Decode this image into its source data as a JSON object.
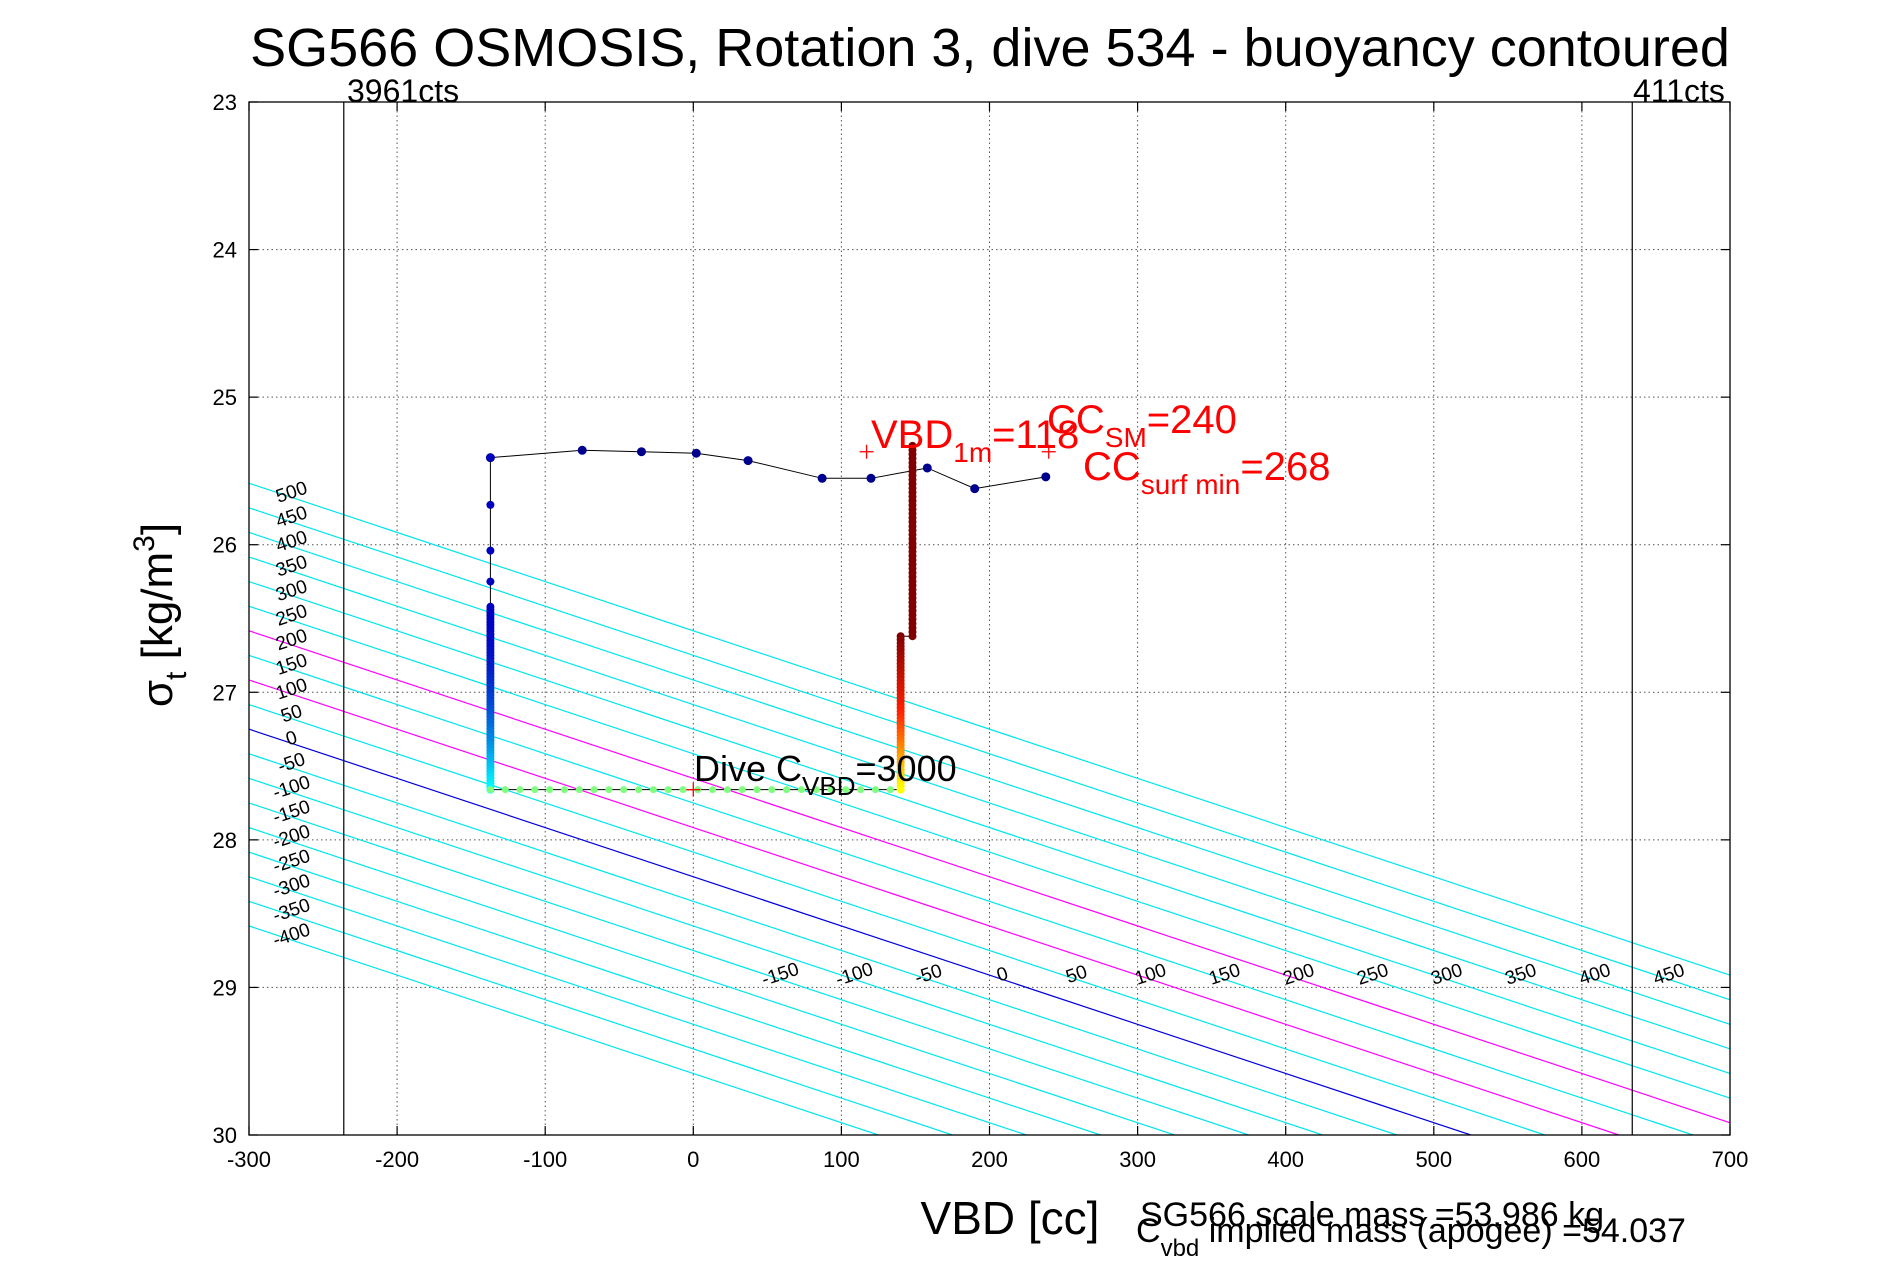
{
  "chart_data": {
    "type": "scatter",
    "title": "SG566 OSMOSIS, Rotation 3, dive 534 - buoyancy contoured",
    "xlabel": "VBD [cc]",
    "ylabel_main": "σ",
    "ylabel_sub": "t",
    "ylabel_units": " [kg/m",
    "ylabel_sup": "3",
    "ylabel_close": "]",
    "xlim": [
      -300,
      700
    ],
    "ylim": [
      23,
      30
    ],
    "y_reversed": true,
    "x_ticks": [
      -300,
      -200,
      -100,
      0,
      100,
      200,
      300,
      400,
      500,
      600,
      700
    ],
    "y_ticks": [
      23,
      24,
      25,
      26,
      27,
      28,
      29,
      30
    ],
    "grid": true,
    "vbd_limits": [
      {
        "x": -236,
        "label": "3961cts"
      },
      {
        "x": 634,
        "label": "411cts"
      }
    ],
    "contour_levels": [
      -400,
      -350,
      -300,
      -250,
      -200,
      -150,
      -100,
      -50,
      0,
      50,
      100,
      150,
      200,
      250,
      300,
      350,
      400,
      450,
      500
    ],
    "contour_labels_top": [
      -400,
      -350,
      -300,
      -250,
      -200,
      -150,
      -100,
      -50,
      0,
      50,
      100,
      150,
      200,
      250,
      300,
      350,
      400,
      450,
      500
    ],
    "contour_labels_bottom": [
      -150,
      -100,
      -50,
      0,
      50,
      100,
      150,
      200,
      250,
      300,
      350,
      400,
      450,
      500
    ],
    "contour_colors": {
      "default": "#00e5ee",
      "zero": "#0000dd",
      "highlight": "#ff00ff"
    },
    "highlight_levels": [
      100,
      200
    ],
    "descent_path": [
      {
        "x": -137,
        "y": 25.41
      },
      {
        "x": -75,
        "y": 25.36
      },
      {
        "x": -35,
        "y": 25.37
      },
      {
        "x": 2,
        "y": 25.38
      },
      {
        "x": 37,
        "y": 25.43
      },
      {
        "x": 87,
        "y": 25.55
      },
      {
        "x": 120,
        "y": 25.55
      },
      {
        "x": 158,
        "y": 25.48
      },
      {
        "x": 190,
        "y": 25.62
      },
      {
        "x": 238,
        "y": 25.54
      }
    ],
    "series_colors": {
      "descent": "#00008f",
      "left_leg_top": "#0000c0",
      "left_leg_bottom": "#00ffff",
      "bottom": "#80ff7f",
      "right_leg_top": "#800000",
      "right_leg_bottom": "#ffff00"
    },
    "left_leg_x": -137,
    "left_leg_y": [
      25.41,
      25.73,
      26.04,
      26.25,
      26.42,
      27.66
    ],
    "bottom_y": 27.66,
    "bottom_x_range": [
      -137,
      140
    ],
    "right_leg": [
      {
        "x": 148,
        "y": 25.33
      },
      {
        "x": 148,
        "y": 26.62
      },
      {
        "x": 140,
        "y": 26.62
      },
      {
        "x": 140,
        "y": 27.66
      }
    ],
    "markers": [
      {
        "x": 117,
        "y": 25.37,
        "color": "#ff0000"
      },
      {
        "x": 240,
        "y": 25.37,
        "color": "#ff0000"
      },
      {
        "x": 0,
        "y": 27.66,
        "color": "#ff0000"
      }
    ],
    "annotations": {
      "vbd_1m": {
        "main": "VBD",
        "sub": "1m",
        "rest": "=118"
      },
      "cc_sm": {
        "main": "CC",
        "sub": "SM",
        "rest": "=240"
      },
      "cc_surf_min": {
        "main": "CC",
        "sub": "surf min",
        "rest": "=268"
      },
      "dive_cvbd": {
        "main": "Dive C",
        "sub": "VBD",
        "rest": "=3000"
      },
      "scale_mass": "SG566 scale mass =53.986 kg",
      "implied_mass": {
        "main": "C",
        "sub": "vbd",
        "rest": " implied mass (apogee) =54.037"
      }
    }
  }
}
